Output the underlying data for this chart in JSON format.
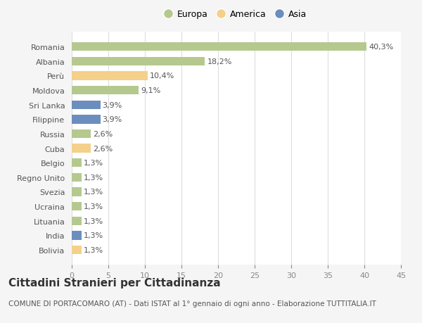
{
  "categories": [
    "Romania",
    "Albania",
    "Perù",
    "Moldova",
    "Sri Lanka",
    "Filippine",
    "Russia",
    "Cuba",
    "Belgio",
    "Regno Unito",
    "Svezia",
    "Ucraina",
    "Lituania",
    "India",
    "Bolivia"
  ],
  "values": [
    40.3,
    18.2,
    10.4,
    9.1,
    3.9,
    3.9,
    2.6,
    2.6,
    1.3,
    1.3,
    1.3,
    1.3,
    1.3,
    1.3,
    1.3
  ],
  "labels": [
    "40,3%",
    "18,2%",
    "10,4%",
    "9,1%",
    "3,9%",
    "3,9%",
    "2,6%",
    "2,6%",
    "1,3%",
    "1,3%",
    "1,3%",
    "1,3%",
    "1,3%",
    "1,3%",
    "1,3%"
  ],
  "continents": [
    "Europa",
    "Europa",
    "America",
    "Europa",
    "Asia",
    "Asia",
    "Europa",
    "America",
    "Europa",
    "Europa",
    "Europa",
    "Europa",
    "Europa",
    "Asia",
    "America"
  ],
  "colors": {
    "Europa": "#b5c98e",
    "America": "#f5d08a",
    "Asia": "#6b8ebf"
  },
  "legend_items": [
    "Europa",
    "America",
    "Asia"
  ],
  "legend_colors": [
    "#b5c98e",
    "#f5d08a",
    "#6b8ebf"
  ],
  "xlim": [
    0,
    45
  ],
  "xticks": [
    0,
    5,
    10,
    15,
    20,
    25,
    30,
    35,
    40,
    45
  ],
  "background_color": "#f5f5f5",
  "plot_bg_color": "#ffffff",
  "title": "Cittadini Stranieri per Cittadinanza",
  "subtitle": "COMUNE DI PORTACOMARO (AT) - Dati ISTAT al 1° gennaio di ogni anno - Elaborazione TUTTITALIA.IT",
  "bar_height": 0.6,
  "label_fontsize": 8,
  "tick_fontsize": 8,
  "title_fontsize": 11,
  "subtitle_fontsize": 7.5
}
